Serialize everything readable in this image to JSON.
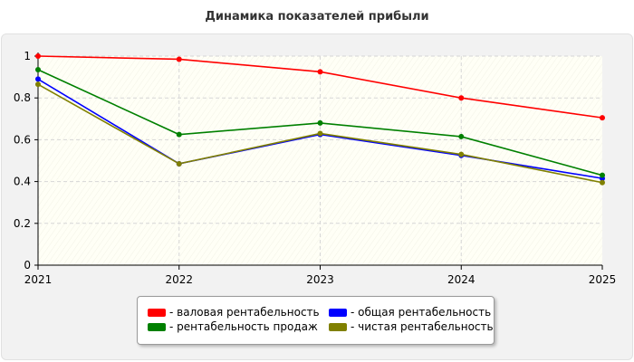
{
  "chart_data": {
    "type": "line",
    "title": "Динамика показателей прибыли",
    "x": [
      "2021",
      "2022",
      "2023",
      "2024",
      "2025"
    ],
    "ylim": [
      0,
      1
    ],
    "yticks": [
      "0",
      "0.2",
      "0.4",
      "0.6",
      "0.8",
      "1"
    ],
    "ytick_values": [
      0,
      0.2,
      0.4,
      0.6,
      0.8,
      1
    ],
    "grid": true,
    "legend_position": "bottom",
    "series": [
      {
        "name": "- валовая рентабельность",
        "color": "#ff0000",
        "values": [
          1.0,
          0.985,
          0.925,
          0.8,
          0.705
        ]
      },
      {
        "name": "- общая рентабельность",
        "color": "#0000ff",
        "values": [
          0.89,
          0.485,
          0.625,
          0.525,
          0.415
        ]
      },
      {
        "name": "- рентабельность продаж",
        "color": "#008000",
        "values": [
          0.935,
          0.625,
          0.68,
          0.615,
          0.43
        ]
      },
      {
        "name": "- чистая рентабельность",
        "color": "#808000",
        "values": [
          0.865,
          0.485,
          0.63,
          0.53,
          0.395
        ]
      }
    ]
  }
}
